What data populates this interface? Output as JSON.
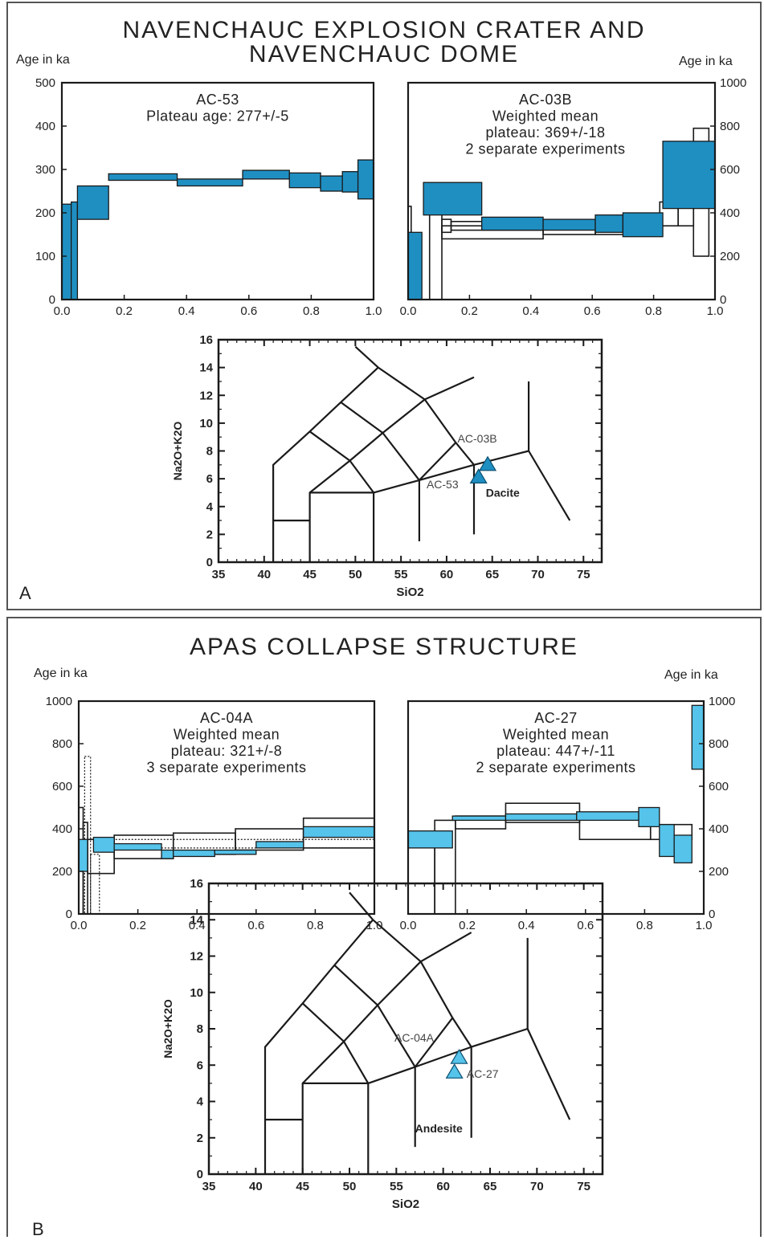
{
  "panels": [
    {
      "title_line1": "NAVENCHAUC EXPLOSION CRATER AND",
      "title_line2": "NAVENCHAUC DOME",
      "age_label_left": "Age in ka",
      "age_label_right": "Age in ka",
      "letter": "A"
    },
    {
      "title_line1": "APAS COLLAPSE STRUCTURE",
      "title_line2": "",
      "age_label_left": "Age in ka",
      "age_label_right": "Age in ka",
      "letter": "B"
    }
  ],
  "colors": {
    "fill_dark": "#1f8fc2",
    "fill_light": "#55c3ea",
    "line": "#1a1a1a"
  },
  "chart_data": [
    {
      "type": "bar",
      "subtype": "age-spectrum",
      "sample": "AC-53",
      "annotation_lines": [
        "AC-53",
        "Plateau age: 277+/-5"
      ],
      "xlim": [
        0,
        1.0
      ],
      "ylim": [
        0,
        500
      ],
      "x_ticks": [
        "0.0",
        "0.2",
        "0.4",
        "0.6",
        "0.8",
        "1.0"
      ],
      "y_ticks": [
        "0",
        "100",
        "200",
        "300",
        "400",
        "500"
      ],
      "y_axis_side": "left",
      "steps": [
        {
          "x0": 0.0,
          "x1": 0.03,
          "lo": 0,
          "hi": 220
        },
        {
          "x0": 0.03,
          "x1": 0.05,
          "lo": 0,
          "hi": 225
        },
        {
          "x0": 0.05,
          "x1": 0.15,
          "lo": 185,
          "hi": 262
        },
        {
          "x0": 0.15,
          "x1": 0.37,
          "lo": 275,
          "hi": 290
        },
        {
          "x0": 0.37,
          "x1": 0.58,
          "lo": 262,
          "hi": 278
        },
        {
          "x0": 0.58,
          "x1": 0.73,
          "lo": 278,
          "hi": 298
        },
        {
          "x0": 0.73,
          "x1": 0.83,
          "lo": 258,
          "hi": 292
        },
        {
          "x0": 0.83,
          "x1": 0.9,
          "lo": 250,
          "hi": 285
        },
        {
          "x0": 0.9,
          "x1": 0.95,
          "lo": 248,
          "hi": 295
        },
        {
          "x0": 0.95,
          "x1": 1.0,
          "lo": 232,
          "hi": 322
        }
      ],
      "outline_steps": []
    },
    {
      "type": "bar",
      "subtype": "age-spectrum",
      "sample": "AC-03B",
      "annotation_lines": [
        "AC-03B",
        "Weighted mean",
        "plateau: 369+/-18",
        "2 separate experiments"
      ],
      "xlim": [
        0,
        1.0
      ],
      "ylim": [
        0,
        1000
      ],
      "x_ticks": [
        "0.0",
        "0.2",
        "0.4",
        "0.6",
        "0.8",
        "1.0"
      ],
      "y_ticks": [
        "0",
        "200",
        "400",
        "600",
        "800",
        "1000"
      ],
      "y_axis_side": "right",
      "steps": [
        {
          "x0": 0.0,
          "x1": 0.045,
          "lo": 0,
          "hi": 310
        },
        {
          "x0": 0.05,
          "x1": 0.24,
          "lo": 390,
          "hi": 540
        },
        {
          "x0": 0.24,
          "x1": 0.44,
          "lo": 320,
          "hi": 380
        },
        {
          "x0": 0.44,
          "x1": 0.61,
          "lo": 320,
          "hi": 370
        },
        {
          "x0": 0.61,
          "x1": 0.7,
          "lo": 310,
          "hi": 390
        },
        {
          "x0": 0.7,
          "x1": 0.83,
          "lo": 290,
          "hi": 400
        },
        {
          "x0": 0.83,
          "x1": 1.0,
          "lo": 420,
          "hi": 730
        }
      ],
      "outline_steps": [
        {
          "x0": 0.0,
          "x1": 0.01,
          "lo": 0,
          "hi": 430
        },
        {
          "x0": 0.07,
          "x1": 0.11,
          "lo": 0,
          "hi": 400
        },
        {
          "x0": 0.11,
          "x1": 0.14,
          "lo": 310,
          "hi": 370
        },
        {
          "x0": 0.11,
          "x1": 0.44,
          "lo": 280,
          "hi": 340
        },
        {
          "x0": 0.14,
          "x1": 0.44,
          "lo": 320,
          "hi": 360
        },
        {
          "x0": 0.44,
          "x1": 0.61,
          "lo": 300,
          "hi": 350
        },
        {
          "x0": 0.61,
          "x1": 0.82,
          "lo": 300,
          "hi": 370
        },
        {
          "x0": 0.82,
          "x1": 0.88,
          "lo": 340,
          "hi": 450
        },
        {
          "x0": 0.88,
          "x1": 0.93,
          "lo": 340,
          "hi": 620
        },
        {
          "x0": 0.93,
          "x1": 0.98,
          "lo": 200,
          "hi": 790
        }
      ]
    },
    {
      "type": "scatter",
      "subtype": "TAS-diagram",
      "xlabel": "SiO2",
      "ylabel": "Na2O+K2O",
      "xlim": [
        35,
        77
      ],
      "ylim": [
        0,
        16
      ],
      "x_ticks": [
        "35",
        "40",
        "45",
        "50",
        "55",
        "60",
        "65",
        "70",
        "75"
      ],
      "y_ticks": [
        "0",
        "2",
        "4",
        "6",
        "8",
        "10",
        "12",
        "14",
        "16"
      ],
      "field_label": "Dacite",
      "field_label_pos": [
        64.3,
        4.7
      ],
      "points": [
        {
          "label": "AC-03B",
          "x": 64.5,
          "y": 7.0,
          "label_pos": [
            61.2,
            8.6
          ]
        },
        {
          "label": "AC-53",
          "x": 63.5,
          "y": 6.1,
          "label_pos": [
            57.8,
            5.3
          ]
        }
      ]
    },
    {
      "type": "bar",
      "subtype": "age-spectrum",
      "sample": "AC-04A",
      "annotation_lines": [
        "AC-04A",
        "Weighted mean",
        "plateau: 321+/-8",
        "3 separate experiments"
      ],
      "xlim": [
        0,
        1.0
      ],
      "ylim": [
        0,
        1000
      ],
      "x_ticks": [
        "0.0",
        "0.2",
        "0.4",
        "0.6",
        "0.8",
        "1.0"
      ],
      "y_ticks": [
        "0",
        "200",
        "400",
        "600",
        "800",
        "1000"
      ],
      "y_axis_side": "left",
      "steps": [
        {
          "x0": 0.0,
          "x1": 0.03,
          "lo": 200,
          "hi": 350
        },
        {
          "x0": 0.05,
          "x1": 0.12,
          "lo": 290,
          "hi": 360
        },
        {
          "x0": 0.12,
          "x1": 0.28,
          "lo": 300,
          "hi": 330
        },
        {
          "x0": 0.28,
          "x1": 0.32,
          "lo": 260,
          "hi": 300
        },
        {
          "x0": 0.32,
          "x1": 0.46,
          "lo": 270,
          "hi": 300
        },
        {
          "x0": 0.46,
          "x1": 0.6,
          "lo": 280,
          "hi": 300
        },
        {
          "x0": 0.6,
          "x1": 0.76,
          "lo": 310,
          "hi": 340
        },
        {
          "x0": 0.76,
          "x1": 1.0,
          "lo": 360,
          "hi": 410
        }
      ],
      "outline_steps": [
        {
          "x0": 0.0,
          "x1": 0.015,
          "lo": 0,
          "hi": 500
        },
        {
          "x0": 0.015,
          "x1": 0.03,
          "lo": 0,
          "hi": 430
        },
        {
          "x0": 0.03,
          "x1": 0.12,
          "lo": 190,
          "hi": 350
        },
        {
          "x0": 0.12,
          "x1": 0.32,
          "lo": 260,
          "hi": 370
        },
        {
          "x0": 0.32,
          "x1": 0.53,
          "lo": 280,
          "hi": 380
        },
        {
          "x0": 0.53,
          "x1": 0.76,
          "lo": 300,
          "hi": 400
        },
        {
          "x0": 0.76,
          "x1": 1.0,
          "lo": 310,
          "hi": 450
        }
      ],
      "dotted_steps": [
        {
          "x0": 0.02,
          "x1": 0.04,
          "lo": 0,
          "hi": 740
        },
        {
          "x0": 0.04,
          "x1": 0.07,
          "lo": 0,
          "hi": 280
        },
        {
          "x0": 0.07,
          "x1": 1.0,
          "lo": 310,
          "hi": 350
        }
      ]
    },
    {
      "type": "bar",
      "subtype": "age-spectrum",
      "sample": "AC-27",
      "annotation_lines": [
        "AC-27",
        "Weighted mean",
        "plateau: 447+/-11",
        "2 separate experiments"
      ],
      "xlim": [
        0,
        1.0
      ],
      "ylim": [
        0,
        1000
      ],
      "x_ticks": [
        "0.0",
        "0.2",
        "0.4",
        "0.6",
        "0.8",
        "1.0"
      ],
      "y_ticks": [
        "0",
        "200",
        "400",
        "600",
        "800",
        "1000"
      ],
      "y_axis_side": "right",
      "steps": [
        {
          "x0": 0.0,
          "x1": 0.15,
          "lo": 310,
          "hi": 390
        },
        {
          "x0": 0.15,
          "x1": 0.33,
          "lo": 440,
          "hi": 460
        },
        {
          "x0": 0.33,
          "x1": 0.57,
          "lo": 440,
          "hi": 470
        },
        {
          "x0": 0.57,
          "x1": 0.78,
          "lo": 440,
          "hi": 480
        },
        {
          "x0": 0.78,
          "x1": 0.85,
          "lo": 410,
          "hi": 500
        },
        {
          "x0": 0.85,
          "x1": 0.9,
          "lo": 270,
          "hi": 420
        },
        {
          "x0": 0.9,
          "x1": 0.96,
          "lo": 240,
          "hi": 370
        },
        {
          "x0": 0.96,
          "x1": 1.0,
          "lo": 680,
          "hi": 980
        }
      ],
      "outline_steps": [
        {
          "x0": 0.0,
          "x1": 0.09,
          "lo": 0,
          "hi": 330
        },
        {
          "x0": 0.09,
          "x1": 0.16,
          "lo": 0,
          "hi": 440
        },
        {
          "x0": 0.16,
          "x1": 0.33,
          "lo": 400,
          "hi": 460
        },
        {
          "x0": 0.33,
          "x1": 0.58,
          "lo": 430,
          "hi": 520
        },
        {
          "x0": 0.58,
          "x1": 0.82,
          "lo": 350,
          "hi": 460
        },
        {
          "x0": 0.82,
          "x1": 0.96,
          "lo": 350,
          "hi": 420
        }
      ]
    },
    {
      "type": "scatter",
      "subtype": "TAS-diagram",
      "xlabel": "SiO2",
      "ylabel": "Na2O+K2O",
      "xlim": [
        35,
        77
      ],
      "ylim": [
        0,
        16
      ],
      "x_ticks": [
        "35",
        "40",
        "45",
        "50",
        "55",
        "60",
        "65",
        "70",
        "75"
      ],
      "y_ticks": [
        "0",
        "2",
        "4",
        "6",
        "8",
        "10",
        "12",
        "14",
        "16"
      ],
      "field_label": "Andesite",
      "field_label_pos": [
        57.0,
        2.3
      ],
      "points": [
        {
          "label": "AC-04A",
          "x": 61.7,
          "y": 6.4,
          "label_pos": [
            54.8,
            7.3
          ]
        },
        {
          "label": "AC-27",
          "x": 61.2,
          "y": 5.6,
          "label_pos": [
            62.5,
            5.3
          ]
        }
      ]
    }
  ]
}
